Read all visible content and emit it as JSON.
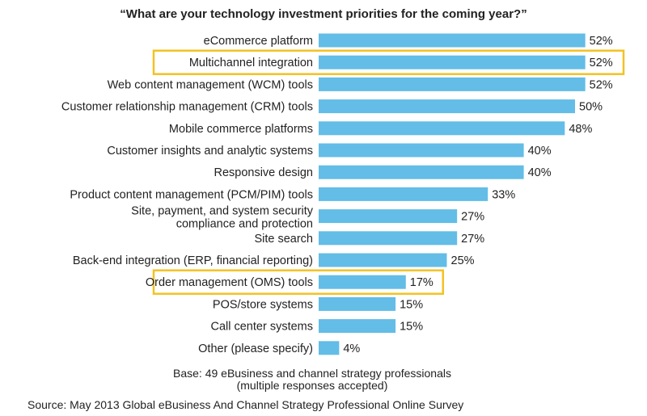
{
  "chart_data": {
    "type": "bar",
    "orientation": "horizontal",
    "title": "“What are your technology investment priorities for the coming year?”",
    "categories": [
      "eCommerce platform",
      "Multichannel integration",
      "Web content management (WCM) tools",
      "Customer relationship management (CRM) tools",
      "Mobile commerce platforms",
      "Customer insights and analytic systems",
      "Responsive design",
      "Product content management (PCM/PIM) tools",
      "Site, payment, and system security compliance and protection",
      "Site search",
      "Back-end integration (ERP, financial reporting)",
      "Order management (OMS) tools",
      "POS/store systems",
      "Call center systems",
      "Other (please specify)"
    ],
    "values": [
      52,
      52,
      52,
      50,
      48,
      40,
      40,
      33,
      27,
      27,
      25,
      17,
      15,
      15,
      4
    ],
    "value_labels": [
      "52%",
      "52%",
      "52%",
      "50%",
      "48%",
      "40%",
      "40%",
      "33%",
      "27%",
      "27%",
      "25%",
      "17%",
      "15%",
      "15%",
      "4%"
    ],
    "highlighted": [
      "Multichannel integration",
      "Order management (OMS) tools"
    ],
    "xlim": [
      0,
      55
    ],
    "grid": false,
    "legend": "none",
    "colors": {
      "bar": "#63bde6",
      "highlight": "#f3c222"
    }
  },
  "notes": {
    "base_line1": "Base: 49 eBusiness and channel strategy professionals",
    "base_line2": "(multiple responses accepted)",
    "source": "Source: May 2013 Global eBusiness And Channel Strategy Professional Online Survey"
  }
}
